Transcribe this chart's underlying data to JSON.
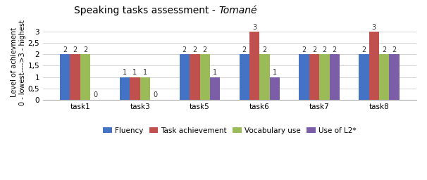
{
  "title_regular": "Speaking tasks assessment - ",
  "title_italic": "Tomané",
  "ylabel_line1": "Level of achievment",
  "ylabel_line2": "0 - lowest---->3 - highest",
  "categories": [
    "task1",
    "task3",
    "task5",
    "task6",
    "task7",
    "task8"
  ],
  "series": {
    "Fluency": [
      2,
      1,
      2,
      2,
      2,
      2
    ],
    "Task achievement": [
      2,
      1,
      2,
      3,
      2,
      3
    ],
    "Vocabulary use": [
      2,
      1,
      2,
      2,
      2,
      2
    ],
    "Use of L2*": [
      0,
      0,
      1,
      1,
      2,
      2
    ]
  },
  "colors": {
    "Fluency": "#4472C4",
    "Task achievement": "#C0504D",
    "Vocabulary use": "#9BBB59",
    "Use of L2*": "#7B5EA7"
  },
  "ylim": [
    0,
    3.3
  ],
  "yticks": [
    0,
    0.5,
    1,
    1.5,
    2,
    2.5,
    3
  ],
  "ytick_labels": [
    "0",
    "0,5",
    "1",
    "1,5",
    "2",
    "2,5",
    "3"
  ],
  "bar_width": 0.17,
  "figsize": [
    6.06,
    2.56
  ],
  "dpi": 100,
  "bg_color": "#FFFFFF",
  "label_fontsize": 7,
  "axis_fontsize": 7.5,
  "title_fontsize": 10,
  "legend_fontsize": 7.5
}
